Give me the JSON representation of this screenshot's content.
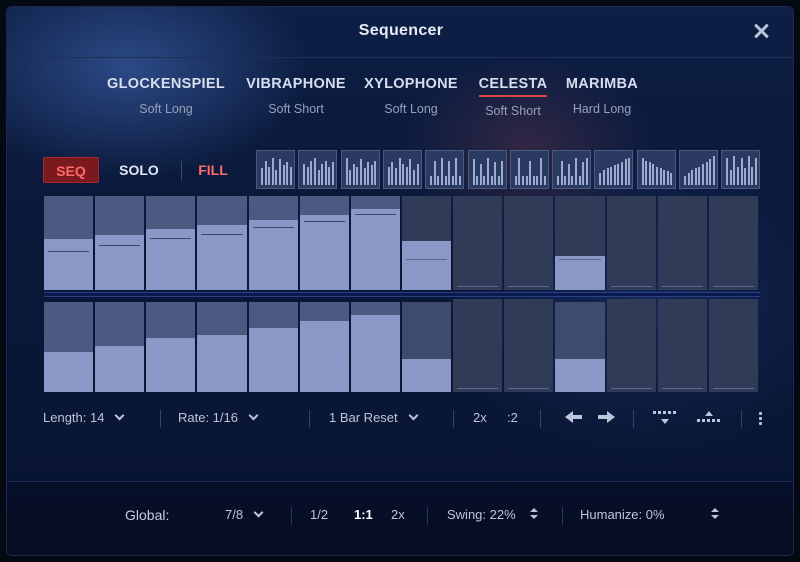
{
  "window": {
    "title": "Sequencer",
    "close_icon": "close-icon"
  },
  "instruments": [
    {
      "name": "GLOCKENSPIEL",
      "articulation": "Soft Long"
    },
    {
      "name": "VIBRAPHONE",
      "articulation": "Soft Short"
    },
    {
      "name": "XYLOPHONE",
      "articulation": "Soft Long"
    },
    {
      "name": "CELESTA",
      "articulation": "Soft Short",
      "active": true
    },
    {
      "name": "MARIMBA",
      "articulation": "Hard Long"
    }
  ],
  "modes": {
    "seq": "SEQ",
    "solo": "SOLO",
    "fill": "FILL",
    "active": "SEQ"
  },
  "pattern_presets": [
    [
      0.55,
      0.8,
      0.6,
      0.9,
      0.5,
      0.85,
      0.65,
      0.75,
      0.6
    ],
    [
      0.7,
      0.6,
      0.8,
      0.9,
      0.5,
      0.7,
      0.8,
      0.6,
      0.75
    ],
    [
      0.9,
      0.5,
      0.7,
      0.6,
      0.85,
      0.55,
      0.75,
      0.65,
      0.8
    ],
    [
      0.6,
      0.75,
      0.55,
      0.9,
      0.7,
      0.6,
      0.85,
      0.5,
      0.7
    ],
    [
      0.3,
      0.8,
      0.3,
      0.9,
      0.3,
      0.8,
      0.3,
      0.9,
      0.3
    ],
    [
      0.85,
      0.3,
      0.7,
      0.3,
      0.9,
      0.3,
      0.75,
      0.3,
      0.8
    ],
    [
      0.3,
      0.9,
      0.3,
      0.3,
      0.8,
      0.3,
      0.3,
      0.9,
      0.3
    ],
    [
      0.3,
      0.8,
      0.3,
      0.7,
      0.3,
      0.9,
      0.3,
      0.75,
      0.9
    ],
    [
      0.4,
      0.5,
      0.55,
      0.6,
      0.65,
      0.7,
      0.75,
      0.85,
      0.9
    ],
    [
      0.9,
      0.8,
      0.75,
      0.7,
      0.6,
      0.55,
      0.5,
      0.45,
      0.4
    ],
    [
      0.3,
      0.4,
      0.5,
      0.55,
      0.6,
      0.7,
      0.75,
      0.85,
      0.95
    ],
    [
      0.9,
      0.5,
      0.95,
      0.6,
      0.9,
      0.55,
      0.95,
      0.6,
      0.9
    ]
  ],
  "steps": {
    "count": 14,
    "length": 14,
    "velocity": [
      0.54,
      0.59,
      0.65,
      0.69,
      0.75,
      0.8,
      0.86,
      0.52,
      0,
      0,
      0.36,
      0,
      0,
      0
    ],
    "velocity_marker": [
      0.4,
      0.47,
      0.54,
      0.59,
      0.66,
      0.72,
      0.8,
      0.32,
      0,
      0,
      0.32,
      0,
      0,
      0
    ],
    "gate": [
      0.43,
      0.5,
      0.58,
      0.61,
      0.69,
      0.76,
      0.83,
      0.35,
      0,
      0,
      0.35,
      0,
      0,
      0
    ],
    "gate_range": [
      0.97,
      0.97,
      0.97,
      0.97,
      0.97,
      0.97,
      0.97,
      0.97,
      0,
      0,
      0.97,
      0,
      0,
      0
    ],
    "on": [
      true,
      true,
      true,
      true,
      true,
      true,
      true,
      false,
      false,
      false,
      false,
      false,
      false,
      false
    ]
  },
  "controls": {
    "length": "Length: 14",
    "rate": "Rate: 1/16",
    "reset": "1 Bar Reset",
    "double": "2x",
    "half": ":2"
  },
  "global": {
    "label": "Global:",
    "meter": "7/8",
    "half": "1/2",
    "one": "1:1",
    "double": "2x",
    "swing": "Swing: 22%",
    "humanize": "Humanize: 0%"
  },
  "colors": {
    "accent_red": "#d84747",
    "step_fill": "#8b98c7",
    "background": "#0a1838"
  }
}
